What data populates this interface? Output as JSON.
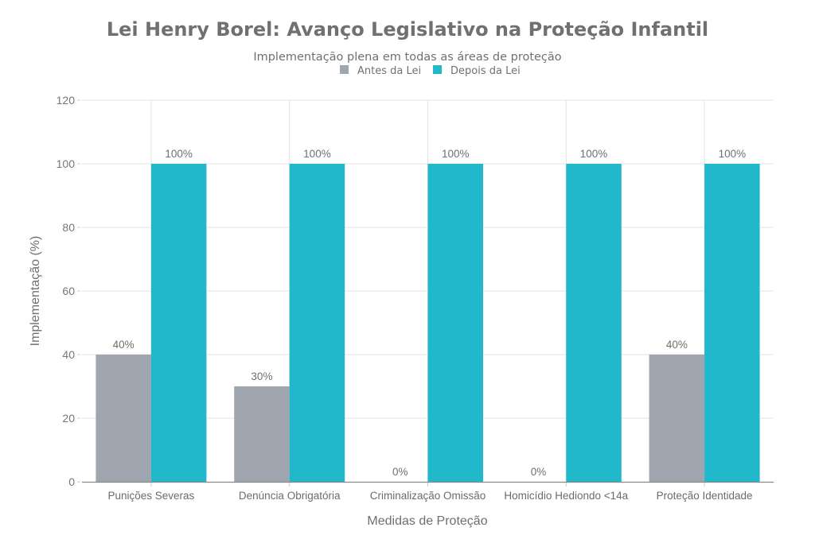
{
  "chart_data": {
    "type": "bar",
    "title": "Lei Henry Borel: Avanço Legislativo na Proteção Infantil",
    "subtitle": "Implementação plena em todas as áreas de proteção",
    "xlabel": "Medidas de Proteção",
    "ylabel": "Implementação (%)",
    "ylim": [
      0,
      120
    ],
    "yticks": [
      0,
      20,
      40,
      60,
      80,
      100,
      120
    ],
    "grid": true,
    "legend_position": "top-center",
    "categories": [
      "Punições Severas",
      "Denúncia Obrigatória",
      "Criminalização Omissão",
      "Homicídio Hediondo <14a",
      "Proteção Identidade"
    ],
    "series": [
      {
        "name": "Antes da Lei",
        "color": "#A0A6AF",
        "values": [
          40,
          30,
          0,
          0,
          40
        ],
        "labels": [
          "40%",
          "30%",
          "0%",
          "0%",
          "40%"
        ]
      },
      {
        "name": "Depois da Lei",
        "color": "#21B8CC",
        "values": [
          100,
          100,
          100,
          100,
          100
        ],
        "labels": [
          "100%",
          "100%",
          "100%",
          "100%",
          "100%"
        ]
      }
    ]
  }
}
